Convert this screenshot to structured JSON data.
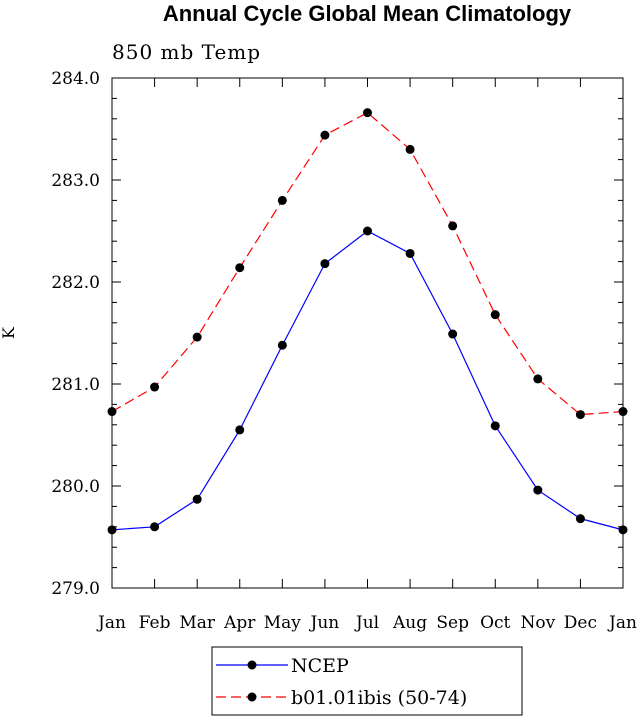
{
  "chart_data": {
    "type": "line",
    "title": "Annual Cycle Global Mean Climatology",
    "subtitle": "850 mb Temp",
    "xlabel": "",
    "ylabel": "K",
    "categories": [
      "Jan",
      "Feb",
      "Mar",
      "Apr",
      "May",
      "Jun",
      "Jul",
      "Aug",
      "Sep",
      "Oct",
      "Nov",
      "Dec",
      "Jan"
    ],
    "ylim": [
      279.0,
      284.0
    ],
    "yticks": [
      "279.0",
      "280.0",
      "281.0",
      "282.0",
      "283.0",
      "284.0"
    ],
    "grid": false,
    "legend_position": "bottom-center",
    "series": [
      {
        "name": "NCEP",
        "color": "#0000ff",
        "dash": "solid",
        "values": [
          279.57,
          279.6,
          279.87,
          280.55,
          281.38,
          282.18,
          282.5,
          282.28,
          281.49,
          280.59,
          279.96,
          279.68,
          279.57
        ]
      },
      {
        "name": "b01.01ibis (50-74)",
        "color": "#ff0000",
        "dash": "dashed",
        "values": [
          280.73,
          280.97,
          281.46,
          282.14,
          282.8,
          283.44,
          283.66,
          283.3,
          282.55,
          281.68,
          281.05,
          280.7,
          280.73
        ]
      }
    ]
  }
}
